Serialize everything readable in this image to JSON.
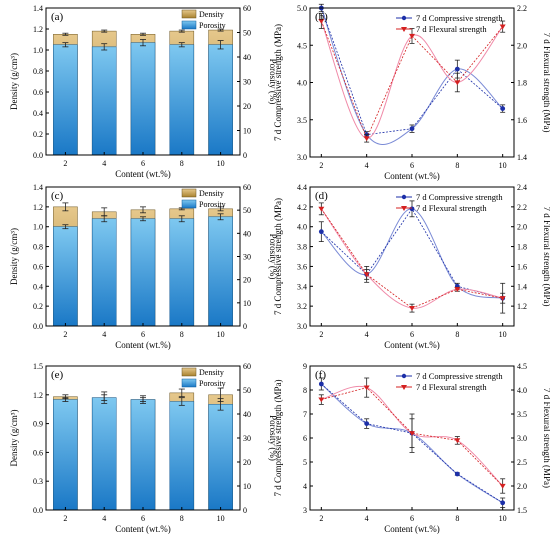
{
  "chart_data": [
    {
      "panel": "(a)",
      "type": "bar",
      "stacked": true,
      "categories": [
        "2",
        "4",
        "6",
        "8",
        "10"
      ],
      "xlabel": "Content (wt.%)",
      "ylabel": "Density (g/cm³)",
      "y2label": "Porosity (%)",
      "ylim": [
        0.0,
        1.4
      ],
      "yticks": [
        "0.0",
        "0.2",
        "0.4",
        "0.6",
        "0.8",
        "1.0",
        "1.2",
        "1.4"
      ],
      "y2lim": [
        0,
        60
      ],
      "y2ticks": [
        "0",
        "10",
        "20",
        "30",
        "40",
        "50",
        "60"
      ],
      "series": [
        {
          "name": "Density",
          "values": [
            1.15,
            1.18,
            1.15,
            1.18,
            1.19
          ],
          "errors": [
            0.01,
            0.01,
            0.01,
            0.01,
            0.01
          ]
        },
        {
          "name": "Porosity",
          "values": [
            1.05,
            1.03,
            1.07,
            1.05,
            1.05
          ],
          "errors": [
            0.02,
            0.03,
            0.03,
            0.02,
            0.04
          ]
        }
      ],
      "legend": "top-right"
    },
    {
      "panel": "(b)",
      "type": "line",
      "x": [
        2,
        4,
        6,
        8,
        10
      ],
      "xticks": [
        "2",
        "4",
        "6",
        "8",
        "10"
      ],
      "xlabel": "Content (wt.%)",
      "ylabel": "7 d Compressive strength (MPa)",
      "y2label": "7 d Flexural strength (MPa)",
      "ylim": [
        3.0,
        5.0
      ],
      "yticks": [
        "3.0",
        "3.5",
        "4.0",
        "4.5",
        "5.0"
      ],
      "y2lim": [
        1.4,
        2.2
      ],
      "y2ticks": [
        "1.4",
        "1.6",
        "1.8",
        "2.0",
        "2.2"
      ],
      "series": [
        {
          "name": "7 d Compressive strength",
          "axis": "left",
          "color": "#1c2fa8",
          "marker": "circle",
          "values": [
            5.0,
            3.3,
            3.38,
            4.18,
            3.65
          ],
          "errors": [
            0.05,
            0.04,
            0.05,
            0.12,
            0.05
          ]
        },
        {
          "name": "7 d Flexural strength",
          "axis": "right",
          "color": "#d42020",
          "marker": "triangle",
          "values": [
            2.13,
            1.5,
            2.05,
            1.8,
            2.1
          ],
          "errors": [
            0.04,
            0.02,
            0.04,
            0.05,
            0.03
          ]
        }
      ],
      "legend": "top-right"
    },
    {
      "panel": "(c)",
      "type": "bar",
      "stacked": true,
      "categories": [
        "2",
        "4",
        "6",
        "8",
        "10"
      ],
      "xlabel": "Content (wt.%)",
      "ylabel": "Density (g/cm³)",
      "y2label": "Porosity (%)",
      "ylim": [
        0.0,
        1.4
      ],
      "yticks": [
        "0.0",
        "0.2",
        "0.4",
        "0.6",
        "0.8",
        "1.0",
        "1.2",
        "1.4"
      ],
      "y2lim": [
        0,
        60
      ],
      "y2ticks": [
        "0",
        "10",
        "20",
        "30",
        "40",
        "50",
        "60"
      ],
      "series": [
        {
          "name": "Density",
          "values": [
            1.2,
            1.15,
            1.17,
            1.18,
            1.18
          ],
          "errors": [
            0.04,
            0.04,
            0.03,
            0.01,
            0.02
          ]
        },
        {
          "name": "Porosity",
          "values": [
            1.0,
            1.08,
            1.08,
            1.08,
            1.1
          ],
          "errors": [
            0.02,
            0.03,
            0.02,
            0.03,
            0.03
          ]
        }
      ],
      "legend": "top-right"
    },
    {
      "panel": "(d)",
      "type": "line",
      "x": [
        2,
        4,
        6,
        8,
        10
      ],
      "xticks": [
        "2",
        "4",
        "6",
        "8",
        "10"
      ],
      "xlabel": "Content (wt.%)",
      "ylabel": "7 d Compressive strength (MPa)",
      "y2label": "7 d Flexural strength (MPa)",
      "ylim": [
        3.0,
        4.4
      ],
      "yticks": [
        "3.0",
        "3.2",
        "3.4",
        "3.6",
        "3.8",
        "4.0",
        "4.2",
        "4.4"
      ],
      "y2lim": [
        1.0,
        2.4
      ],
      "y2ticks": [
        "1.2",
        "1.4",
        "1.6",
        "1.8",
        "2.0",
        "2.2",
        "2.4"
      ],
      "series": [
        {
          "name": "7 d Compressive strength",
          "axis": "left",
          "color": "#1c2fa8",
          "marker": "circle",
          "values": [
            3.95,
            3.52,
            4.18,
            3.4,
            3.28
          ],
          "errors": [
            0.1,
            0.08,
            0.08,
            0.03,
            0.15
          ]
        },
        {
          "name": "7 d Flexural strength",
          "axis": "right",
          "color": "#d42020",
          "marker": "triangle",
          "values": [
            2.18,
            1.52,
            1.18,
            1.37,
            1.28
          ],
          "errors": [
            0.06,
            0.05,
            0.04,
            0.02,
            0.05
          ]
        }
      ],
      "legend": "top-right"
    },
    {
      "panel": "(e)",
      "type": "bar",
      "stacked": true,
      "categories": [
        "2",
        "4",
        "6",
        "8",
        "10"
      ],
      "xlabel": "Content (wt.%)",
      "ylabel": "Density (g/cm³)",
      "y2label": "Porosity (%)",
      "ylim": [
        0.0,
        1.5
      ],
      "yticks": [
        "0.0",
        "0.3",
        "0.6",
        "0.9",
        "1.2",
        "1.5"
      ],
      "y2lim": [
        0,
        60
      ],
      "y2ticks": [
        "0",
        "10",
        "20",
        "30",
        "40",
        "50",
        "60"
      ],
      "series": [
        {
          "name": "Density",
          "values": [
            1.18,
            1.17,
            1.15,
            1.22,
            1.2
          ],
          "errors": [
            0.02,
            0.06,
            0.04,
            0.04,
            0.07
          ]
        },
        {
          "name": "Porosity",
          "values": [
            1.15,
            1.17,
            1.15,
            1.13,
            1.1
          ],
          "errors": [
            0.02,
            0.03,
            0.02,
            0.04,
            0.06
          ]
        }
      ],
      "legend": "top-right"
    },
    {
      "panel": "(f)",
      "type": "line",
      "x": [
        2,
        4,
        6,
        8,
        10
      ],
      "xticks": [
        "2",
        "4",
        "6",
        "8",
        "10"
      ],
      "xlabel": "Content (wt.%)",
      "ylabel": "7 d Compressive strength (MPa)",
      "y2label": "7 d Flexural strength (MPa)",
      "ylim": [
        3,
        9
      ],
      "yticks": [
        "3",
        "4",
        "5",
        "6",
        "7",
        "8",
        "9"
      ],
      "y2lim": [
        1.5,
        4.5
      ],
      "y2ticks": [
        "1.5",
        "2.0",
        "2.5",
        "3.0",
        "3.5",
        "4.0",
        "4.5"
      ],
      "series": [
        {
          "name": "7 d Compressive strength",
          "axis": "left",
          "color": "#1c2fa8",
          "marker": "circle",
          "values": [
            8.25,
            6.6,
            6.2,
            4.5,
            3.3
          ],
          "errors": [
            0.25,
            0.2,
            0.8,
            0.05,
            0.2
          ]
        },
        {
          "name": "7 d Flexural strength",
          "axis": "right",
          "color": "#d42020",
          "marker": "triangle",
          "values": [
            3.8,
            4.05,
            3.1,
            2.95,
            2.0
          ],
          "errors": [
            0.1,
            0.2,
            0.3,
            0.08,
            0.15
          ]
        }
      ],
      "legend": "top-right"
    }
  ],
  "colors": {
    "porosity_top": "#7ec8f0",
    "porosity_bottom": "#1a78c6",
    "density_top": "#e6c88c",
    "density_bottom": "#a8822e",
    "axis": "#000000",
    "smooth_compressive": "#7b8bd6",
    "smooth_flexural": "#f08aa8"
  }
}
